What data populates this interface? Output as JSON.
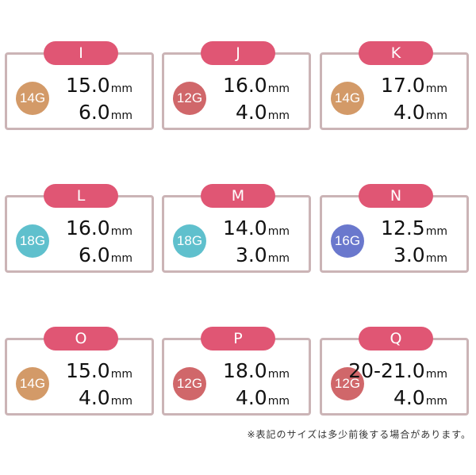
{
  "colors": {
    "pill": "#e05674",
    "border": "#cbb4b6",
    "14G": "#d39a68",
    "12G": "#d0676a",
    "18G": "#5fc0cd",
    "16G": "#6a78cd"
  },
  "cards": [
    {
      "label": "I",
      "gauge": "14G",
      "diameter": "15.0",
      "width": "6.0",
      "unit": "mm"
    },
    {
      "label": "J",
      "gauge": "12G",
      "diameter": "16.0",
      "width": "4.0",
      "unit": "mm"
    },
    {
      "label": "K",
      "gauge": "14G",
      "diameter": "17.0",
      "width": "4.0",
      "unit": "mm"
    },
    {
      "label": "L",
      "gauge": "18G",
      "diameter": "16.0",
      "width": "6.0",
      "unit": "mm"
    },
    {
      "label": "M",
      "gauge": "18G",
      "diameter": "14.0",
      "width": "3.0",
      "unit": "mm"
    },
    {
      "label": "N",
      "gauge": "16G",
      "diameter": "12.5",
      "width": "3.0",
      "unit": "mm"
    },
    {
      "label": "O",
      "gauge": "14G",
      "diameter": "15.0",
      "width": "4.0",
      "unit": "mm"
    },
    {
      "label": "P",
      "gauge": "12G",
      "diameter": "18.0",
      "width": "4.0",
      "unit": "mm"
    },
    {
      "label": "Q",
      "gauge": "12G",
      "diameter": "20-21.0",
      "width": "4.0",
      "unit": "mm"
    }
  ],
  "note": "※表記のサイズは多少前後する場合があります。"
}
